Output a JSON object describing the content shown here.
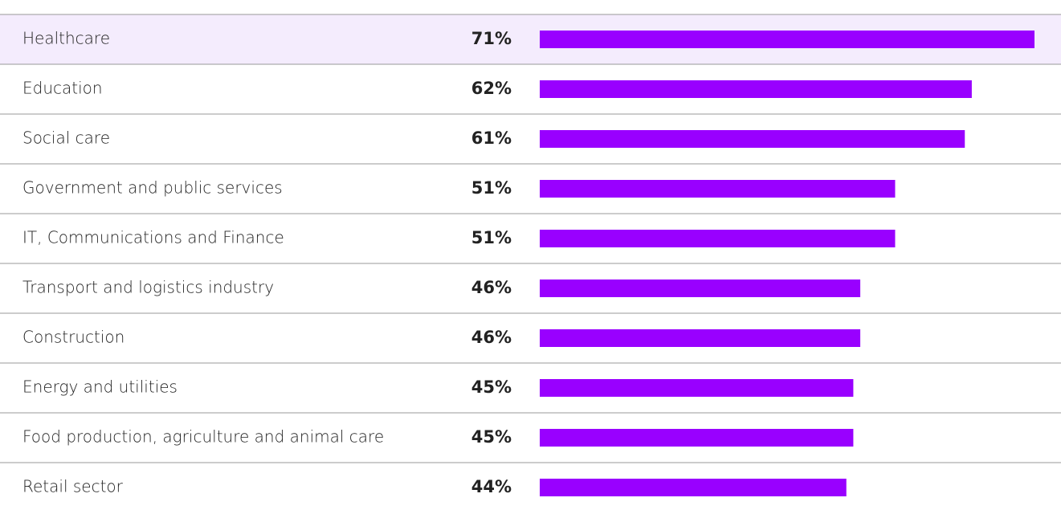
{
  "chart_data": {
    "type": "bar",
    "orientation": "horizontal",
    "categories": [
      "Healthcare",
      "Education",
      "Social care",
      "Government and public services",
      "IT, Communications and Finance",
      "Transport and logistics industry",
      "Construction",
      "Energy and utilities",
      "Food production, agriculture and animal care",
      "Retail sector"
    ],
    "values": [
      71,
      62,
      61,
      51,
      51,
      46,
      46,
      45,
      45,
      44
    ],
    "value_labels": [
      "71%",
      "62%",
      "61%",
      "51%",
      "51%",
      "46%",
      "46%",
      "45%",
      "45%",
      "44%"
    ],
    "color": "#9900ff"
  }
}
